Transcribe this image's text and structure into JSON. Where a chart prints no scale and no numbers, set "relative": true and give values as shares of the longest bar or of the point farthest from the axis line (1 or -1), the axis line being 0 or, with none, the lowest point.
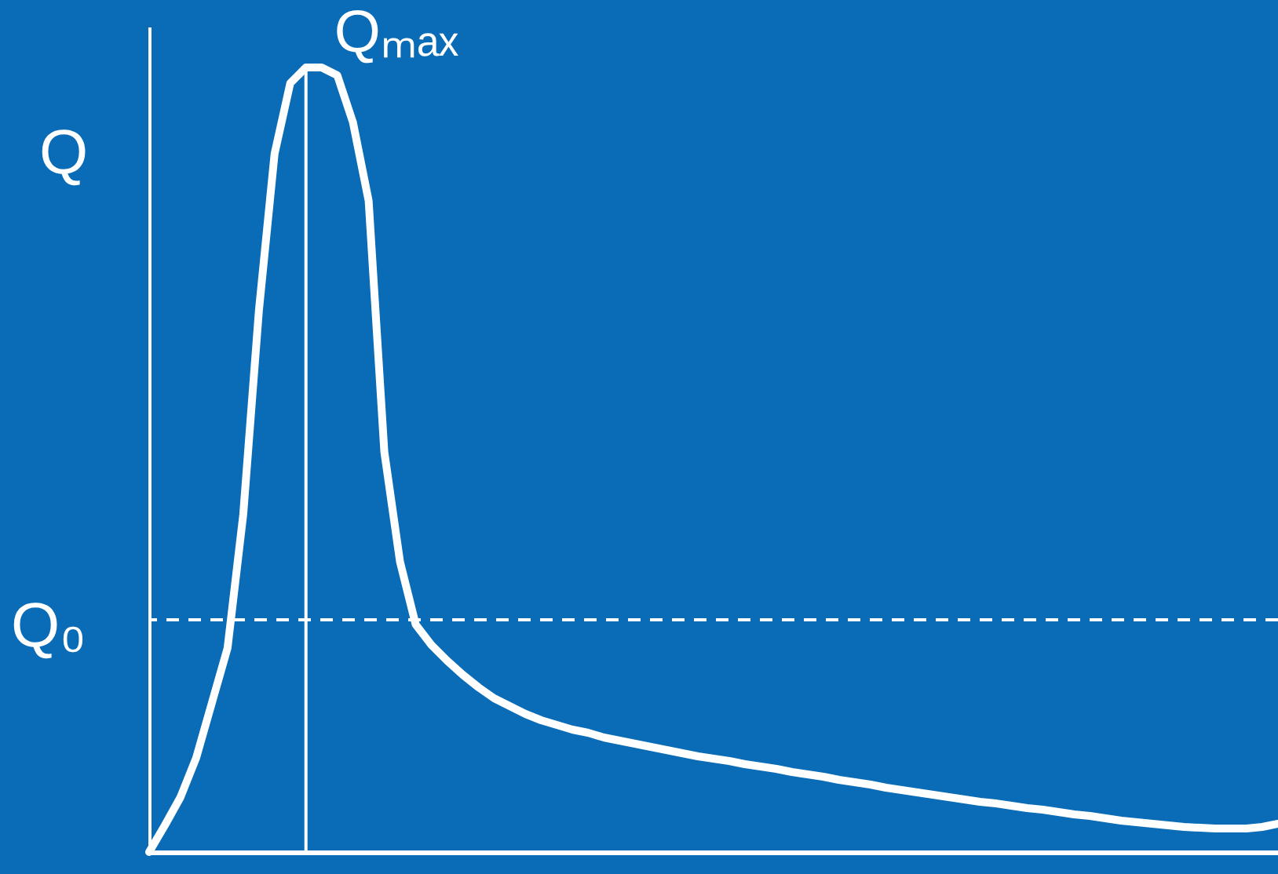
{
  "chart_data": {
    "type": "line",
    "relative": true,
    "ylabel": "Q",
    "categories": [
      null,
      null,
      null,
      null,
      null,
      null,
      null,
      null,
      null,
      null,
      null,
      null,
      null,
      null,
      null,
      null,
      null,
      null,
      null,
      null,
      null,
      null,
      null,
      null,
      null,
      null,
      null,
      null,
      null,
      null,
      null,
      null,
      null,
      null,
      null,
      null,
      null,
      null,
      null,
      null,
      null,
      null,
      null,
      null,
      null,
      null,
      null,
      null,
      null,
      null,
      null,
      null,
      null,
      null,
      null,
      null,
      null,
      null,
      null,
      null,
      null,
      null,
      null,
      null,
      null,
      null,
      null,
      null,
      null,
      null,
      null,
      null,
      null
    ],
    "series": [
      {
        "color": "#ffffff",
        "values": [
          0,
          0.034,
          0.07,
          0.12,
          0.19,
          0.26,
          0.43,
          0.69,
          0.89,
          0.98,
          1.0,
          1.0,
          0.99,
          0.93,
          0.83,
          0.51,
          0.37,
          0.29,
          0.264,
          0.244,
          0.226,
          0.21,
          0.196,
          0.186,
          0.176,
          0.168,
          0.162,
          0.156,
          0.152,
          0.146,
          0.142,
          0.138,
          0.134,
          0.13,
          0.126,
          0.122,
          0.119,
          0.116,
          0.112,
          0.109,
          0.106,
          0.102,
          0.099,
          0.096,
          0.092,
          0.089,
          0.086,
          0.082,
          0.079,
          0.076,
          0.073,
          0.07,
          0.067,
          0.064,
          0.062,
          0.059,
          0.056,
          0.054,
          0.051,
          0.048,
          0.046,
          0.043,
          0.04,
          0.038,
          0.036,
          0.034,
          0.032,
          0.031,
          0.03,
          0.03,
          0.03,
          0.032,
          0.036
        ]
      }
    ],
    "ref_lines": [
      {
        "axis": "y",
        "value": 0.296,
        "label": "Q₀",
        "line_style": "dashed",
        "color": "#ffffff"
      }
    ],
    "annotations": [
      "Qₘₐₓ"
    ],
    "line_style": "solid",
    "marker": "none",
    "grid": false
  }
}
